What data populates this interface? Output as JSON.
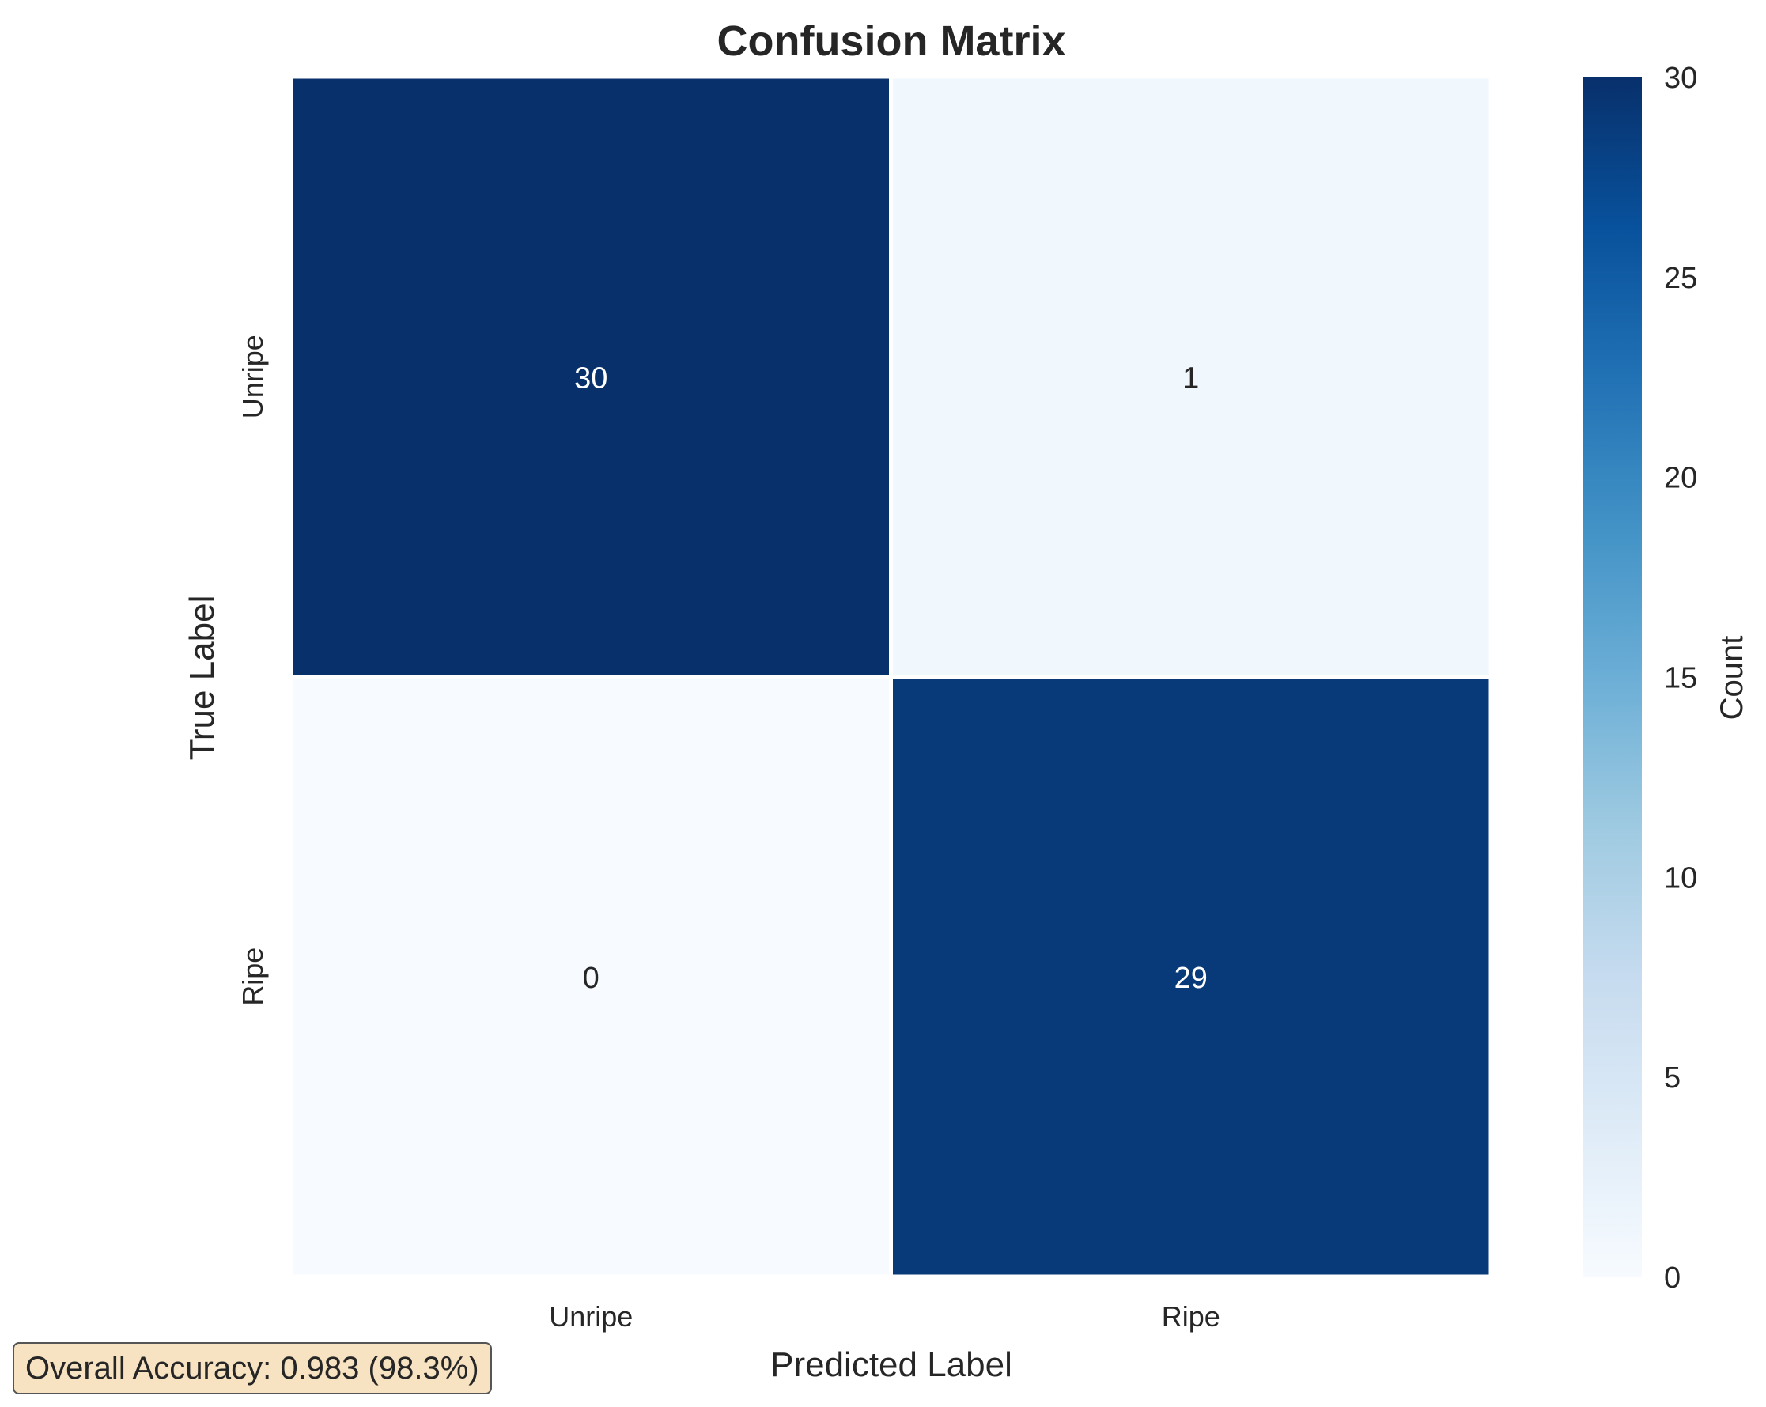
{
  "chart_data": {
    "type": "heatmap",
    "title": "Confusion Matrix",
    "xlabel": "Predicted Label",
    "ylabel": "True Label",
    "x_categories": [
      "Unripe",
      "Ripe"
    ],
    "y_categories": [
      "Unripe",
      "Ripe"
    ],
    "values": [
      [
        30,
        1
      ],
      [
        0,
        29
      ]
    ],
    "colorbar": {
      "label": "Count",
      "range": [
        0,
        30
      ],
      "ticks": [
        "0",
        "5",
        "10",
        "15",
        "20",
        "25",
        "30"
      ],
      "colormap": "Blues"
    },
    "colors": {
      "low": "#f7fbff",
      "high": "#08306b",
      "text_on_dark": "#ffffff",
      "text_on_light": "#262626"
    }
  },
  "annotation": {
    "text": "Overall Accuracy: 0.983 (98.3%)"
  }
}
